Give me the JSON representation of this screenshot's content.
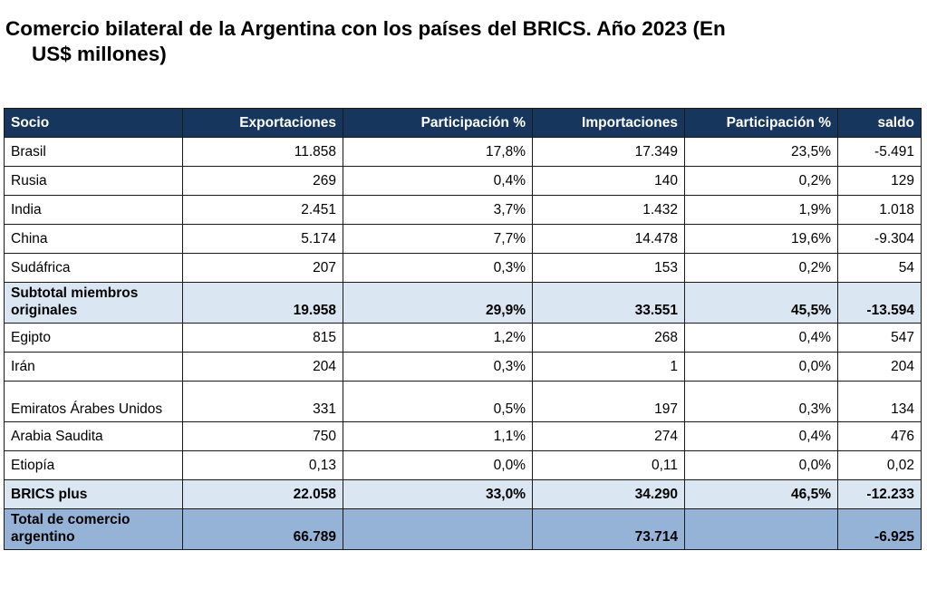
{
  "title": {
    "line1": "Comercio bilateral de la Argentina con los países del BRICS. Año 2023 (En",
    "line2": "US$ millones)"
  },
  "table": {
    "headers": [
      "Socio",
      "Exportaciones",
      "Participación %",
      "Importaciones",
      "Participación %",
      "saldo"
    ],
    "rows": [
      {
        "type": "country",
        "cells": [
          "Brasil",
          "11.858",
          "17,8%",
          "17.349",
          "23,5%",
          "-5.491"
        ]
      },
      {
        "type": "country",
        "cells": [
          "Rusia",
          "269",
          "0,4%",
          "140",
          "0,2%",
          "129"
        ]
      },
      {
        "type": "country",
        "cells": [
          "India",
          "2.451",
          "3,7%",
          "1.432",
          "1,9%",
          "1.018"
        ]
      },
      {
        "type": "country",
        "cells": [
          "China",
          "5.174",
          "7,7%",
          "14.478",
          "19,6%",
          "-9.304"
        ]
      },
      {
        "type": "country",
        "cells": [
          "Sudáfrica",
          "207",
          "0,3%",
          "153",
          "0,2%",
          "54"
        ]
      },
      {
        "type": "subtotal",
        "cells": [
          "Subtotal miembros originales",
          "19.958",
          "29,9%",
          "33.551",
          "45,5%",
          "-13.594"
        ]
      },
      {
        "type": "country",
        "cells": [
          "Egipto",
          "815",
          "1,2%",
          "268",
          "0,4%",
          "547"
        ]
      },
      {
        "type": "country",
        "cells": [
          "Irán",
          "204",
          "0,3%",
          "1",
          "0,0%",
          "204"
        ]
      },
      {
        "type": "country",
        "cells": [
          "Emiratos Árabes Unidos",
          "331",
          "0,5%",
          "197",
          "0,3%",
          "134"
        ]
      },
      {
        "type": "country",
        "cells": [
          "Arabia Saudita",
          "750",
          "1,1%",
          "274",
          "0,4%",
          "476"
        ]
      },
      {
        "type": "country",
        "cells": [
          "Etiopía",
          "0,13",
          "0,0%",
          "0,11",
          "0,0%",
          "0,02"
        ]
      },
      {
        "type": "brics",
        "cells": [
          "BRICS plus",
          "22.058",
          "33,0%",
          "34.290",
          "46,5%",
          "-12.233"
        ]
      },
      {
        "type": "total",
        "cells": [
          "Total de comercio argentino",
          "66.789",
          "",
          "73.714",
          "",
          "-6.925"
        ]
      }
    ]
  },
  "colors": {
    "header_bg": "#17365d",
    "header_text": "#ffffff",
    "subtotal_bg": "#dbe6f3",
    "total_bg": "#95b3d7"
  }
}
